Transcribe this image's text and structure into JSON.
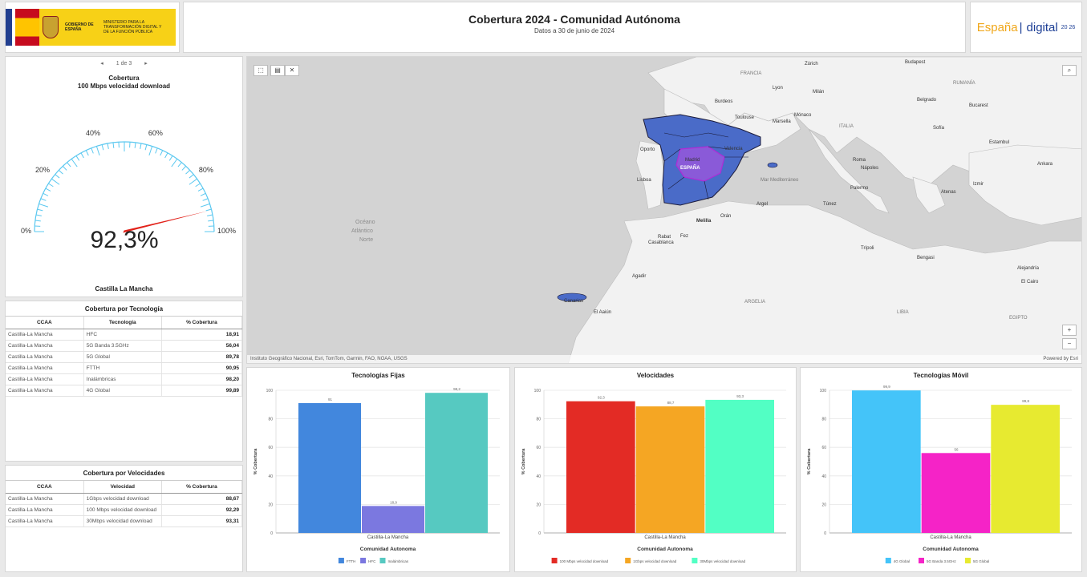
{
  "header": {
    "gov_name": "GOBIERNO DE ESPAÑA",
    "ministry": "MINISTERIO PARA LA TRANSFORMACIÓN DIGITAL Y DE LA FUNCIÓN PÚBLICA",
    "title": "Cobertura 2024 - Comunidad Autónoma",
    "subtitle": "Datos a 30 de junio de 2024",
    "brand_left": "España",
    "brand_right": "digital",
    "brand_year": "20 26"
  },
  "gauge": {
    "pager": "1 de 3",
    "title_line1": "Cobertura",
    "title_line2": "100 Mbps velocidad download",
    "value": 92.3,
    "value_label": "92,3%",
    "ticks": [
      "0%",
      "20%",
      "40%",
      "60%",
      "80%",
      "100%"
    ],
    "region": "Castilla La Mancha",
    "color": "#5bc8f0",
    "needle_color": "#e2221a"
  },
  "table_tech": {
    "title": "Cobertura por Tecnología",
    "columns": [
      "CCAA",
      "Tecnología",
      "% Cobertura"
    ],
    "rows": [
      [
        "Castilla-La Mancha",
        "HFC",
        "18,91"
      ],
      [
        "Castilla-La Mancha",
        "5G Banda 3.5GHz",
        "56,04"
      ],
      [
        "Castilla-La Mancha",
        "5G Global",
        "89,78"
      ],
      [
        "Castilla-La Mancha",
        "FTTH",
        "90,95"
      ],
      [
        "Castilla-La Mancha",
        "Inalámbricas",
        "98,20"
      ],
      [
        "Castilla-La Mancha",
        "4G Global",
        "99,89"
      ]
    ]
  },
  "table_vel": {
    "title": "Cobertura por Velocidades",
    "columns": [
      "CCAA",
      "Velocidad",
      "% Cobertura"
    ],
    "rows": [
      [
        "Castilla-La Mancha",
        "1Gbps velocidad download",
        "88,67"
      ],
      [
        "Castilla-La Mancha",
        "100 Mbps velocidad download",
        "92,29"
      ],
      [
        "Castilla-La Mancha",
        "30Mbps velocidad download",
        "93,31"
      ]
    ]
  },
  "map": {
    "attribution": "Instituto Geográfico Nacional, Esri, TomTom, Garmin, FAO, NOAA, USGS",
    "powered": "Powered by Esri",
    "zoom_in": "+",
    "zoom_out": "−",
    "labels": {
      "ocean": "Océano",
      "ocean2": "Atlántico",
      "ocean3": "Norte",
      "francia": "FRANCIA",
      "italia": "ITALIA",
      "argelia": "ARGELIA",
      "libia": "LIBIA",
      "egipto": "EGIPTO",
      "rumania": "RUMANÍA",
      "espana": "ESPAÑA",
      "madrid": "Madrid",
      "valencia": "Valencia",
      "lisboa": "Lisboa",
      "porto": "Oporto",
      "rabat": "Rabat",
      "casablanca": "Casablanca",
      "fez": "Fez",
      "melilla": "Melilla",
      "oran": "Orán",
      "argel": "Argel",
      "tunez": "Túnez",
      "tripoli": "Trípoli",
      "roma": "Roma",
      "napoles": "Nápoles",
      "palermo": "Palermo",
      "atenas": "Atenas",
      "estambul": "Estambul",
      "ankara": "Ankara",
      "budapest": "Budapest",
      "belgrado": "Belgrado",
      "bucarest": "Bucarest",
      "sofia": "Sofía",
      "zurich": "Zúrich",
      "milan": "Milán",
      "lyon": "Lyon",
      "burdeos": "Burdeos",
      "toulouse": "Toulouse",
      "marsella": "Marsella",
      "monaco": "Mónaco",
      "el_cairo": "El Cairo",
      "alejandria": "Alejandría",
      "bengasi": "Bengasi",
      "mar_med": "Mar Mediterráneo",
      "el_aaiun": "El Aaiún",
      "canarias": "Canarias",
      "izmir": "Izmir",
      "agadir": "Agadir"
    }
  },
  "chart_data": [
    {
      "type": "bar",
      "title": "Tecnologías Fijas",
      "xlabel": "Comunidad Autonoma",
      "ylabel": "% Cobertura",
      "category": "Castilla-La Mancha",
      "ylim": [
        0,
        100
      ],
      "yticks": [
        0,
        20,
        40,
        60,
        80,
        100
      ],
      "series": [
        {
          "name": "FTTH",
          "value": 91,
          "label": "91",
          "color": "#4287dd"
        },
        {
          "name": "HFC",
          "value": 18.9,
          "label": "18,9",
          "color": "#7b78e0"
        },
        {
          "name": "Inalámbricas",
          "value": 98.2,
          "label": "98,2",
          "color": "#56c9c1"
        }
      ]
    },
    {
      "type": "bar",
      "title": "Velocidades",
      "xlabel": "Comunidad Autonoma",
      "ylabel": "% Cobertura",
      "category": "Castilla-La Mancha",
      "ylim": [
        0,
        100
      ],
      "yticks": [
        0,
        20,
        40,
        60,
        80,
        100
      ],
      "series": [
        {
          "name": "100 Mbps velocidad download",
          "value": 92.3,
          "label": "92,3",
          "color": "#e32b25"
        },
        {
          "name": "1Gbps velocidad download",
          "value": 88.7,
          "label": "88,7",
          "color": "#f5a623"
        },
        {
          "name": "30Mbps velocidad download",
          "value": 93.3,
          "label": "93,3",
          "color": "#52ffc4"
        }
      ]
    },
    {
      "type": "bar",
      "title": "Tecnologías Móvil",
      "xlabel": "Comunidad Autonoma",
      "ylabel": "% Cobertura",
      "category": "Castilla-La Mancha",
      "ylim": [
        0,
        100
      ],
      "yticks": [
        0,
        20,
        40,
        60,
        80,
        100
      ],
      "series": [
        {
          "name": "4G Global",
          "value": 99.9,
          "label": "99,9",
          "color": "#44c4f9"
        },
        {
          "name": "5G Banda 3.5GHz",
          "value": 56,
          "label": "56",
          "color": "#f523c7"
        },
        {
          "name": "5G Global",
          "value": 89.8,
          "label": "89,8",
          "color": "#e7ea30"
        }
      ]
    }
  ]
}
